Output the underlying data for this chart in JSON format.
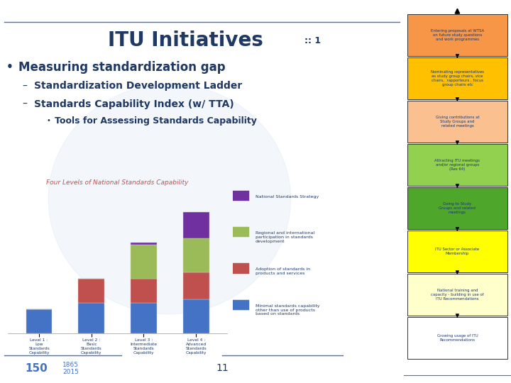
{
  "title": "ITU Initiatives",
  "title_suffix": ":: 1",
  "background_color": "#ffffff",
  "bullet_main": "Measuring standardization gap",
  "bullet_sub1": "Standardization Development Ladder",
  "bullet_sub2": "Standards Capability Index (w/ TTA)",
  "bullet_sub3": "Tools for Assessing Standards Capability",
  "chart_title": "Four Levels of National Standards Capability",
  "chart_categories": [
    "Level 1 :\nLow\nStandards\nCapability",
    "Level 2 :\nBasic\nStandards\nCapability",
    "Level 3 :\nIntermediate\nStandards\nCapability",
    "Level 4 :\nAdvanced\nStandards\nCapability"
  ],
  "chart_series_names": [
    "Minimal standards capability\nother than use of products\nbased on standards",
    "Adoption of standards in\nproducts and services",
    "Regional and international\nparticipation in standards\ndevelopment",
    "National Standards Strategy"
  ],
  "chart_series_values": [
    [
      2,
      2.5,
      2.5,
      2.8
    ],
    [
      0,
      2.0,
      2.0,
      2.2
    ],
    [
      0,
      0,
      2.8,
      2.8
    ],
    [
      0,
      0,
      0.15,
      2.2
    ]
  ],
  "chart_colors": [
    "#4472C4",
    "#C0504D",
    "#9BBB59",
    "#7030A0"
  ],
  "right_boxes": [
    {
      "text": "Entering proposals at WTSA\non future study questions\nand work programmes",
      "color": "#F79646"
    },
    {
      "text": "Nominating representatives\nas study group chairs, vice\nchairs,  rapporteurs , focus\ngroup chairs etc",
      "color": "#FFC000"
    },
    {
      "text": "Giving contributions at\nStudy Groups and\nrelated meetings",
      "color": "#FAC090"
    },
    {
      "text": "Attracting ITU meetings\nand/or regional groups\n(Res 64)",
      "color": "#92D050"
    },
    {
      "text": "Going to Study\nGroups and related\nmeetings",
      "color": "#4EA72A"
    },
    {
      "text": "ITU Sector or Associate\nMembership",
      "color": "#FFFF00"
    },
    {
      "text": "National training and\ncapacity - building in use of\nITU Recommendations",
      "color": "#FFFFCC"
    },
    {
      "text": "Growing usage of ITU\nRecommendations",
      "color": "#FFFFFF"
    }
  ],
  "slide_number": "11",
  "header_line_color": "#4472C4",
  "title_color": "#1F3864",
  "text_color": "#1F3864",
  "globe_watermark_color": "#C5D9F1",
  "chart_title_color": "#C0504D",
  "bottom_line_color": "#4472C4"
}
